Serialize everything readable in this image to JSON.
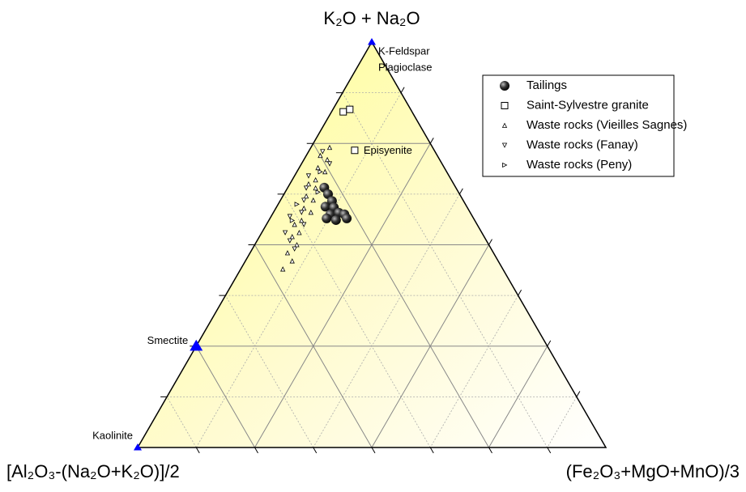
{
  "chart_data": {
    "type": "ternary",
    "axes": {
      "top": {
        "label": "K₂O + Na₂O"
      },
      "left": {
        "label": "[Al₂O₃-(Na₂O+K₂O)]/2"
      },
      "right": {
        "label": "(Fe₂O₃+MgO+MnO)/3"
      }
    },
    "ticks": [
      12.5,
      25,
      37.5,
      50,
      62.5,
      75,
      87.5
    ],
    "major_ticks": [
      25,
      50,
      75
    ],
    "grid": true,
    "legend": "upper right",
    "series": [
      {
        "name": "Tailings",
        "marker": "sphere",
        "color": "#000000",
        "a": [
          64.1,
          62.5,
          60.8,
          59.4,
          59.2,
          57.5,
          57.9,
          57.5,
          56.5,
          56.5,
          56.1
        ],
        "b": [
          28.1,
          28.1,
          28.1,
          30.2,
          28.5,
          30.1,
          28.1,
          27.1,
          27.1,
          31.4,
          29.6
        ],
        "c": [
          7.8,
          9.4,
          11.1,
          10.4,
          12.3,
          12.4,
          14.0,
          15.4,
          16.4,
          12.1,
          14.3
        ]
      },
      {
        "name": "Saint-Sylvestre granite",
        "marker": "square",
        "color": "#000000",
        "a": [
          82.8,
          83.4,
          73.3
        ],
        "b": [
          14.7,
          13.0,
          17.0
        ],
        "c": [
          2.5,
          3.6,
          9.7
        ]
      },
      {
        "name": "Waste rocks (Vieilles Sagnes)",
        "marker": "triangle-up",
        "color": "#000000",
        "a": [
          74,
          72,
          71,
          69,
          68,
          66,
          65,
          64,
          62,
          61,
          59,
          58,
          56,
          55,
          53,
          52,
          50,
          48,
          46,
          44
        ],
        "b": [
          22,
          25,
          24,
          27,
          26,
          29,
          31,
          30,
          33,
          32,
          35,
          34,
          37,
          39,
          39,
          41,
          41,
          44,
          44,
          47
        ],
        "c": [
          4,
          3,
          5,
          4,
          6,
          5,
          4,
          6,
          5,
          7,
          6,
          8,
          7,
          6,
          8,
          7,
          9,
          8,
          10,
          9
        ]
      },
      {
        "name": "Waste rocks (Fanay)",
        "marker": "triangle-down",
        "color": "#000000",
        "a": [
          73,
          70,
          67,
          64,
          61,
          58,
          55,
          53,
          51,
          49,
          57
        ],
        "b": [
          24,
          24,
          30,
          32,
          34,
          36,
          37,
          42,
          42,
          42,
          39
        ],
        "c": [
          3,
          6,
          3,
          4,
          5,
          6,
          8,
          5,
          7,
          9,
          4
        ]
      },
      {
        "name": "Waste rocks (Peny)",
        "marker": "triangle-right",
        "color": "#000000",
        "a": [
          68,
          63,
          60,
          56
        ],
        "b": [
          27,
          30,
          36,
          39
        ],
        "c": [
          5,
          7,
          4,
          5
        ]
      }
    ],
    "end_members": [
      {
        "label": [
          "K-Feldspar",
          "Plagioclase"
        ],
        "a": 100,
        "b": 0,
        "c": 0,
        "color": "#0000ff"
      },
      {
        "label": [
          "Smectite"
        ],
        "a": 25,
        "b": 75,
        "c": 0,
        "color": "#0000ff"
      },
      {
        "label": [
          "Kaolinite"
        ],
        "a": 0,
        "b": 100,
        "c": 0,
        "color": "#0000ff"
      }
    ],
    "annotations": [
      "Episyenite"
    ]
  }
}
